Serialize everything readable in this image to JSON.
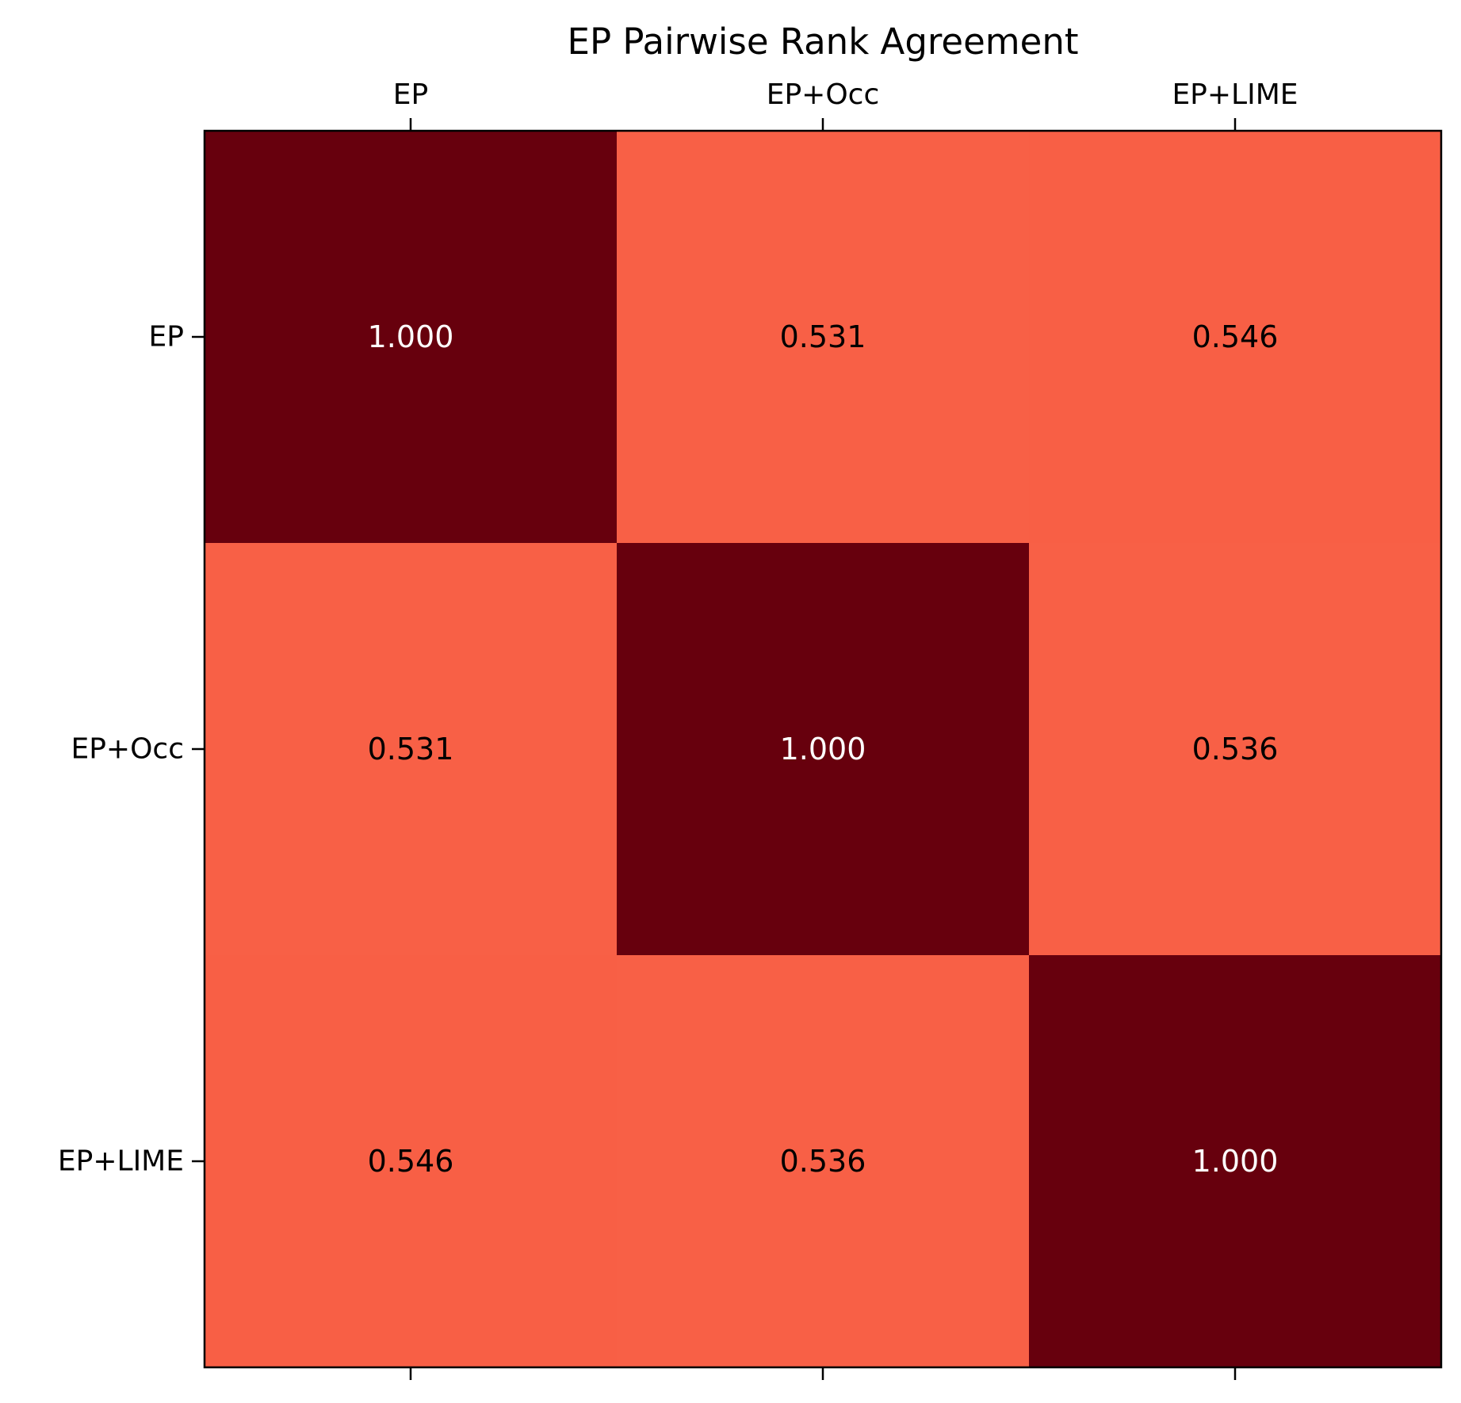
{
  "chart_data": {
    "type": "heatmap",
    "title": "EP Pairwise Rank Agreement",
    "x_categories": [
      "EP",
      "EP+Occ",
      "EP+LIME"
    ],
    "y_categories": [
      "EP",
      "EP+Occ",
      "EP+LIME"
    ],
    "x_tick_position": "top",
    "values": [
      [
        1.0,
        0.531,
        0.546
      ],
      [
        0.531,
        1.0,
        0.536
      ],
      [
        0.546,
        0.536,
        1.0
      ]
    ],
    "cell_labels": [
      [
        "1.000",
        "0.531",
        "0.546"
      ],
      [
        "0.531",
        "1.000",
        "0.536"
      ],
      [
        "0.546",
        "0.536",
        "1.000"
      ]
    ],
    "colormap": "Reds",
    "color_range": [
      0,
      1
    ],
    "colors": {
      "high": "#67000d",
      "mid": "#f86046",
      "label_on_dark": "#ffffff",
      "label_on_light": "#000000"
    },
    "grid": false,
    "legend": "none"
  }
}
